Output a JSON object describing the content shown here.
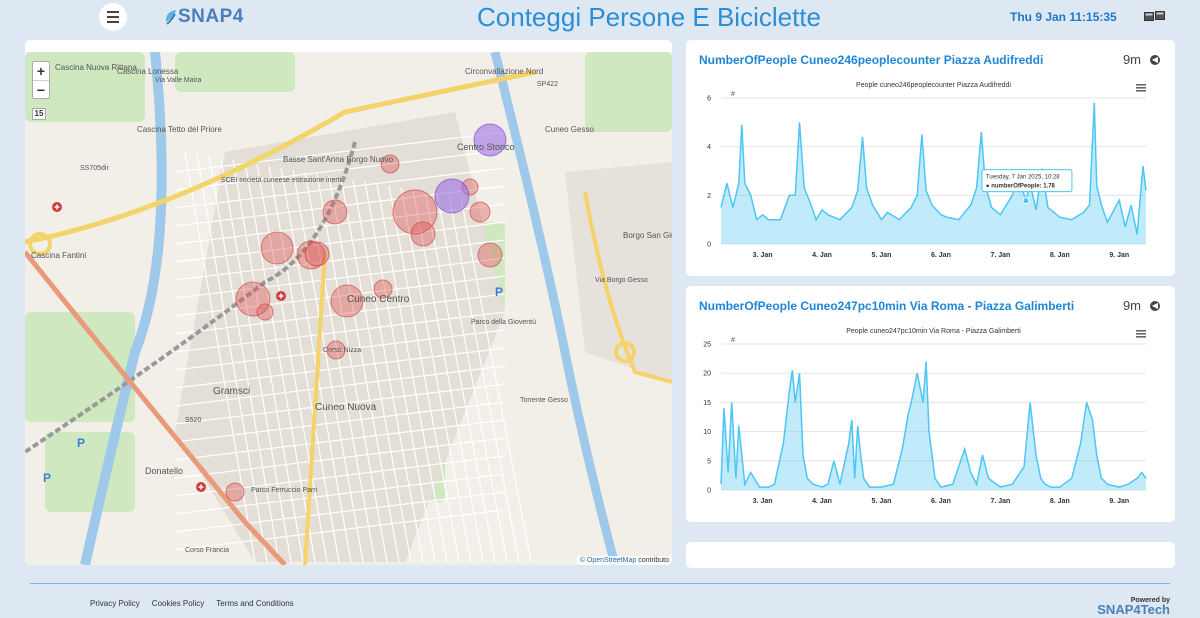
{
  "header": {
    "title": "Conteggi Persone E Biciclette",
    "logo_text": "SNAP4",
    "datetime": "Thu 9 Jan 11:15:35"
  },
  "map": {
    "zoom_in": "+",
    "zoom_out": "−",
    "zoom_level": "15",
    "attribution_link": "© OpenStreetMap",
    "attribution_suffix": " contributo",
    "labels": [
      "Cascina Nuova Rittana",
      "Cascina Lonessa",
      "Cascina Tetto del Priore",
      "Cascina Fantini",
      "Via Valle Maira",
      "Circonvallazione Nord",
      "Centro Storico",
      "Cuneo Gesso",
      "Basse Sant'Anna Borgo Nuovo",
      "SCEI società cuneese estrazione inerti",
      "Cuneo Centro",
      "Parco della Gioventù",
      "Borgo San Giuseppe",
      "Gramsci",
      "Cuneo Nuova",
      "Donatello",
      "Parco Ferruccio Parri",
      "Corso Nizza",
      "Torrente Gesso",
      "Via Borgo Gesso",
      "SP422",
      "SS705dir",
      "S520",
      "Corso Francia"
    ]
  },
  "charts": [
    {
      "title": "NumberOfPeople Cuneo246peoplecounter Piazza Audifreddi",
      "age": "9m",
      "chart_title": "People cuneo246peoplecounter Piazza Audifreddi",
      "tooltip_date": "Tuesday, 7 Jan 2025, 10:28",
      "tooltip_value": "numberOfPeople: 1.78"
    },
    {
      "title": "NumberOfPeople Cuneo247pc10min Via Roma - Piazza Galimberti",
      "age": "9m",
      "chart_title": "People cuneo247pc10min Via Roma - Piazza Galimberti"
    }
  ],
  "chart_data": [
    {
      "type": "area",
      "title": "People cuneo246peoplecounter Piazza Audifreddi",
      "ylabel": "#",
      "ylim": [
        0,
        6
      ],
      "yticks": [
        0,
        2,
        4,
        6
      ],
      "x_ticks": [
        "3. Jan",
        "4. Jan",
        "5. Jan",
        "6. Jan",
        "7. Jan",
        "8. Jan",
        "9. Jan"
      ],
      "x_range": [
        2.3,
        9.45
      ],
      "series": [
        {
          "color": "#4cc6f4",
          "x": [
            2.3,
            2.4,
            2.5,
            2.6,
            2.65,
            2.7,
            2.8,
            2.9,
            3.0,
            3.1,
            3.3,
            3.45,
            3.55,
            3.62,
            3.7,
            3.8,
            3.9,
            4.0,
            4.1,
            4.3,
            4.5,
            4.6,
            4.68,
            4.75,
            4.85,
            5.0,
            5.1,
            5.3,
            5.5,
            5.6,
            5.68,
            5.75,
            5.85,
            6.0,
            6.1,
            6.3,
            6.5,
            6.6,
            6.68,
            6.75,
            6.85,
            7.0,
            7.2,
            7.3,
            7.43,
            7.5,
            7.6,
            7.7,
            7.8,
            8.0,
            8.2,
            8.4,
            8.5,
            8.58,
            8.62,
            8.7,
            8.8,
            9.0,
            9.1,
            9.2,
            9.3,
            9.4,
            9.45
          ],
          "y": [
            1.5,
            2.5,
            1.5,
            2.5,
            4.9,
            2.5,
            2.0,
            1.0,
            1.2,
            1.0,
            1.0,
            2.0,
            2.0,
            5.0,
            2.3,
            1.7,
            1.0,
            1.4,
            1.2,
            1.0,
            1.5,
            2.2,
            4.4,
            2.3,
            1.6,
            1.0,
            1.3,
            1.0,
            1.5,
            2.0,
            4.5,
            2.2,
            1.6,
            1.2,
            1.1,
            1.0,
            1.6,
            2.3,
            4.6,
            2.4,
            1.5,
            1.2,
            2.0,
            2.8,
            1.78,
            2.5,
            1.4,
            3.1,
            1.5,
            1.1,
            1.0,
            1.3,
            1.6,
            5.8,
            2.4,
            1.6,
            0.9,
            1.8,
            0.7,
            1.6,
            0.4,
            3.2,
            2.2
          ]
        }
      ],
      "tooltip": {
        "x": 7.43,
        "y": 1.78,
        "label": "Tuesday, 7 Jan 2025, 10:28"
      }
    },
    {
      "type": "area",
      "title": "People cuneo247pc10min Via Roma - Piazza Galimberti",
      "ylabel": "#",
      "ylim": [
        0,
        25
      ],
      "yticks": [
        0,
        5,
        10,
        15,
        20,
        25
      ],
      "x_ticks": [
        "3. Jan",
        "4. Jan",
        "5. Jan",
        "6. Jan",
        "7. Jan",
        "8. Jan",
        "9. Jan"
      ],
      "x_range": [
        2.3,
        9.45
      ],
      "series": [
        {
          "color": "#4cc6f4",
          "x": [
            2.3,
            2.35,
            2.42,
            2.48,
            2.55,
            2.6,
            2.7,
            2.8,
            2.95,
            3.1,
            3.2,
            3.35,
            3.45,
            3.5,
            3.55,
            3.62,
            3.68,
            3.75,
            3.85,
            4.0,
            4.1,
            4.2,
            4.3,
            4.45,
            4.5,
            4.55,
            4.6,
            4.65,
            4.7,
            4.8,
            5.0,
            5.2,
            5.35,
            5.45,
            5.5,
            5.6,
            5.7,
            5.75,
            5.8,
            5.9,
            6.0,
            6.2,
            6.4,
            6.5,
            6.6,
            6.7,
            6.8,
            7.0,
            7.2,
            7.4,
            7.5,
            7.6,
            7.68,
            7.75,
            7.85,
            8.0,
            8.2,
            8.35,
            8.45,
            8.55,
            8.62,
            8.7,
            8.8,
            9.0,
            9.15,
            9.3,
            9.38,
            9.45
          ],
          "y": [
            1,
            14,
            3,
            15,
            2,
            11,
            1,
            3,
            0.5,
            0.5,
            1,
            8,
            17,
            20.5,
            15,
            20,
            6,
            2,
            1,
            0.5,
            1,
            5,
            1,
            8,
            12,
            2,
            11,
            6,
            2,
            0.5,
            0.5,
            1,
            7,
            13,
            15,
            20,
            15,
            22,
            10,
            2,
            0.5,
            1,
            7,
            3,
            1,
            6,
            2,
            0.5,
            1,
            4,
            15,
            6,
            2,
            1,
            0.5,
            0.5,
            2,
            8,
            15,
            12,
            6,
            2,
            1,
            0.5,
            1,
            2,
            3,
            2
          ]
        }
      ]
    }
  ],
  "footer": {
    "links": [
      "Privacy Policy",
      "Cookies Policy",
      "Terms and Conditions"
    ],
    "powered_by": "Powered by",
    "powered_logo": "SNAP4Tech"
  }
}
